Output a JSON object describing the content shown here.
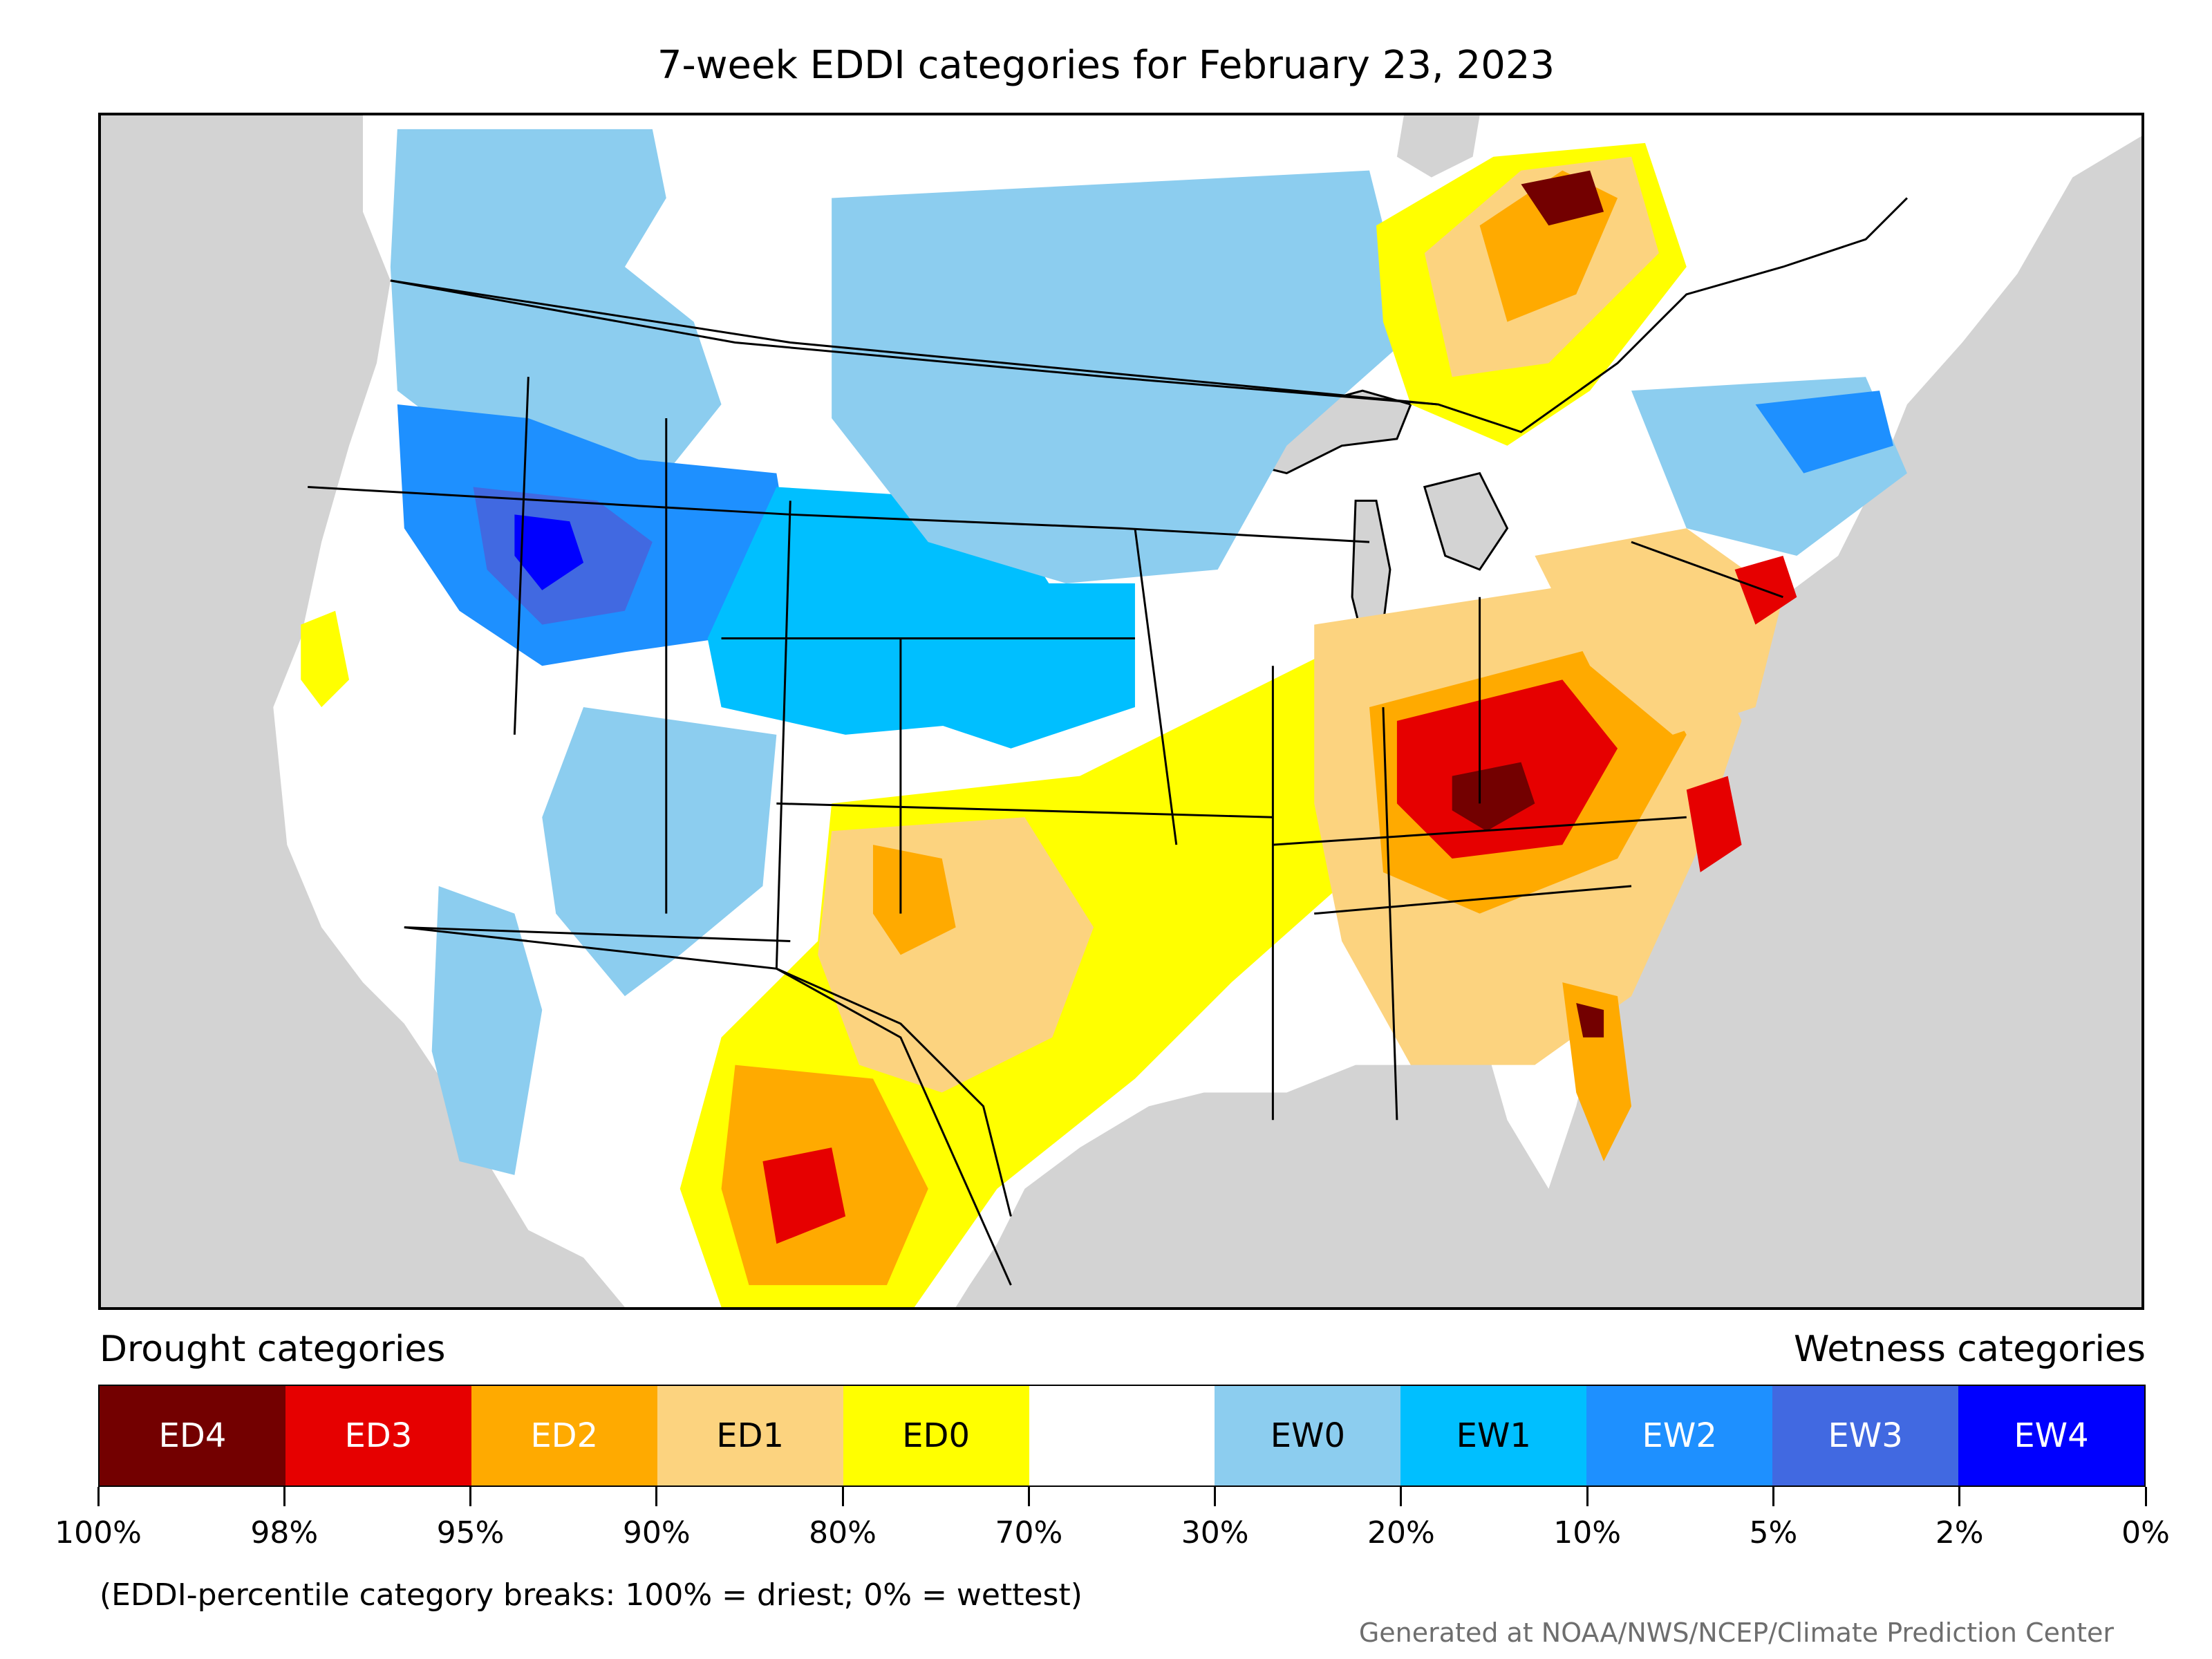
{
  "title": "7-week EDDI categories for February 23, 2023",
  "legend": {
    "drought_title": "Drought categories",
    "wetness_title": "Wetness categories",
    "categories": [
      {
        "label": "ED4",
        "color": "#730000",
        "text_color": "#ffffff"
      },
      {
        "label": "ED3",
        "color": "#e60000",
        "text_color": "#ffffff"
      },
      {
        "label": "ED2",
        "color": "#ffaa00",
        "text_color": "#ffffff"
      },
      {
        "label": "ED1",
        "color": "#fcd37f",
        "text_color": "#000000"
      },
      {
        "label": "ED0",
        "color": "#ffff00",
        "text_color": "#000000"
      },
      {
        "label": "",
        "color": "#ffffff",
        "text_color": "#000000"
      },
      {
        "label": "EW0",
        "color": "#8ccdef",
        "text_color": "#000000"
      },
      {
        "label": "EW1",
        "color": "#00bfff",
        "text_color": "#000000"
      },
      {
        "label": "EW2",
        "color": "#1e90ff",
        "text_color": "#ffffff"
      },
      {
        "label": "EW3",
        "color": "#4169e1",
        "text_color": "#ffffff"
      },
      {
        "label": "EW4",
        "color": "#0000ff",
        "text_color": "#ffffff"
      }
    ],
    "ticks": [
      "100%",
      "98%",
      "95%",
      "90%",
      "80%",
      "70%",
      "30%",
      "20%",
      "10%",
      "5%",
      "2%",
      "0%"
    ]
  },
  "note": "(EDDI-percentile category breaks: 100% = driest; 0% = wettest)",
  "credit": "Generated at NOAA/NWS/NCEP/Climate Prediction Center",
  "map": {
    "region": "Contiguous United States",
    "ocean_color": "#d3d3d3",
    "land_color": "#ffffff",
    "regions": [
      {
        "name": "northern-rockies-wet",
        "category": "EW2"
      },
      {
        "name": "great-basin-wet",
        "category": "EW3"
      },
      {
        "name": "dakotas-wet",
        "category": "EW0"
      },
      {
        "name": "colorado-plateau-wet",
        "category": "EW1"
      },
      {
        "name": "southern-plains-dry",
        "category": "ED1"
      },
      {
        "name": "south-texas-dry",
        "category": "ED2"
      },
      {
        "name": "ohio-valley-dry",
        "category": "ED3"
      },
      {
        "name": "kentucky-core-dry",
        "category": "ED4"
      },
      {
        "name": "southeast-dry",
        "category": "ED1"
      },
      {
        "name": "northeast-dry",
        "category": "ED2"
      },
      {
        "name": "quebec-dry",
        "category": "ED4"
      },
      {
        "name": "florida-dry",
        "category": "ED2"
      }
    ]
  }
}
